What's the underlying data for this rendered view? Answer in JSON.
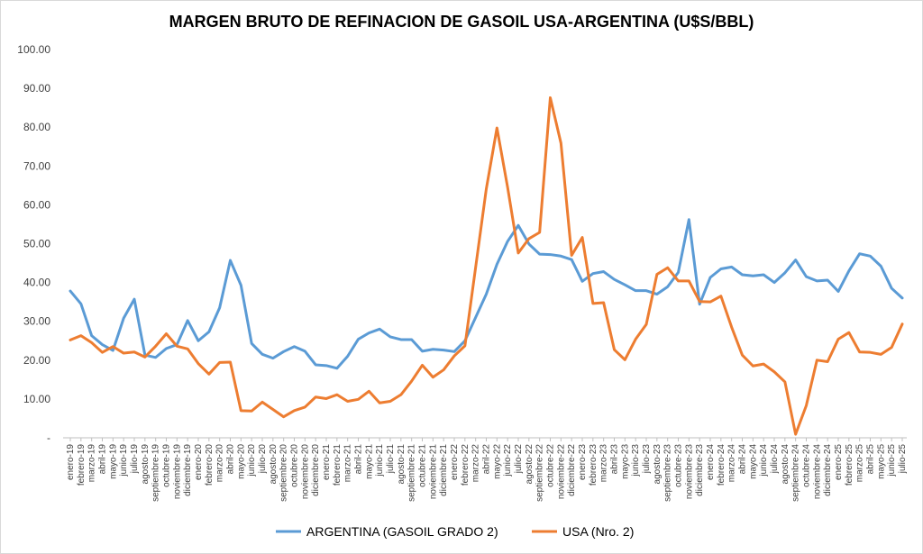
{
  "chart_data": {
    "type": "line",
    "title": "MARGEN BRUTO DE REFINACION DE GASOIL USA-ARGENTINA (U$S/BBL)",
    "xlabel": "",
    "ylabel": "",
    "ylim": [
      0,
      100
    ],
    "yticks": [
      "-",
      "10.00",
      "20.00",
      "30.00",
      "40.00",
      "50.00",
      "60.00",
      "70.00",
      "80.00",
      "90.00",
      "100.00"
    ],
    "grid": false,
    "legend_position": "bottom",
    "categories": [
      "enero-19",
      "febrero-19",
      "marzo-19",
      "abril-19",
      "mayo-19",
      "junio-19",
      "julio-19",
      "agosto-19",
      "septiembre-19",
      "octubre-19",
      "noviembre-19",
      "diciembre-19",
      "enero-20",
      "febrero-20",
      "marzo-20",
      "abril-20",
      "mayo-20",
      "junio-20",
      "julio-20",
      "agosto-20",
      "septiembre-20",
      "octubre-20",
      "noviembre-20",
      "diciembre-20",
      "enero-21",
      "febrero-21",
      "marzo-21",
      "abril-21",
      "mayo-21",
      "junio-21",
      "julio-21",
      "agosto-21",
      "septiembre-21",
      "octubre-21",
      "noviembre-21",
      "diciembre-21",
      "enero-22",
      "febrero-22",
      "marzo-22",
      "abril-22",
      "mayo-22",
      "junio-22",
      "julio-22",
      "agosto-22",
      "septiembre-22",
      "octubre-22",
      "noviembre-22",
      "diciembre-22",
      "enero-23",
      "febrero-23",
      "marzo-23",
      "abril-23",
      "mayo-23",
      "junio-23",
      "julio-23",
      "agosto-23",
      "septiembre-23",
      "octubre-23",
      "noviembre-23",
      "diciembre-23",
      "enero-24",
      "febrero-24",
      "marzo-24",
      "abril-24",
      "mayo-24",
      "junio-24",
      "julio-24",
      "agosto-24",
      "septiembre-24",
      "octubre-24",
      "noviembre-24",
      "diciembre-24",
      "enero-25",
      "febrero-25",
      "marzo-25",
      "abril-25",
      "mayo-25",
      "junio-25",
      "julio-25"
    ],
    "series": [
      {
        "name": "ARGENTINA (GASOIL GRADO 2)",
        "color": "#5b9bd5",
        "values": [
          37.8,
          34.5,
          26.3,
          24.0,
          22.5,
          30.8,
          35.7,
          21.3,
          20.7,
          23.0,
          24.0,
          30.2,
          25.0,
          27.3,
          33.5,
          45.7,
          39.3,
          24.3,
          21.5,
          20.5,
          22.2,
          23.5,
          22.3,
          18.8,
          18.6,
          17.9,
          21.0,
          25.4,
          27.0,
          28.0,
          26.0,
          25.3,
          25.3,
          22.3,
          22.8,
          22.6,
          22.2,
          25.0,
          31.0,
          37.0,
          44.7,
          50.6,
          54.7,
          49.9,
          47.3,
          47.2,
          46.8,
          45.9,
          40.3,
          42.3,
          42.8,
          40.8,
          39.4,
          37.9,
          37.9,
          37.0,
          38.9,
          42.6,
          56.2,
          34.4,
          41.3,
          43.5,
          44.0,
          42.0,
          41.7,
          42.0,
          40.0,
          42.5,
          45.8,
          41.5,
          40.4,
          40.6,
          37.7,
          43.0,
          47.4,
          46.8,
          44.2,
          38.5,
          36.0
        ]
      },
      {
        "name": "USA (Nro. 2)",
        "color": "#ed7d31",
        "values": [
          25.2,
          26.3,
          24.5,
          22.0,
          23.5,
          21.8,
          22.1,
          20.8,
          23.6,
          26.8,
          23.6,
          22.9,
          19.1,
          16.4,
          19.4,
          19.5,
          7.0,
          6.9,
          9.2,
          7.3,
          5.4,
          7.0,
          7.9,
          10.5,
          10.1,
          11.1,
          9.4,
          9.9,
          12.0,
          9.0,
          9.4,
          11.1,
          14.6,
          18.7,
          15.6,
          17.5,
          21.1,
          23.7,
          43.9,
          64.1,
          79.8,
          64.5,
          47.6,
          51.3,
          52.9,
          87.6,
          75.9,
          47.0,
          51.6,
          34.6,
          34.8,
          22.7,
          20.1,
          25.4,
          29.2,
          42.1,
          43.8,
          40.4,
          40.4,
          35.1,
          35.0,
          36.5,
          28.5,
          21.3,
          18.5,
          19.0,
          17.0,
          14.4,
          0.9,
          8.3,
          20.0,
          19.6,
          25.4,
          27.1,
          22.1,
          22.0,
          21.5,
          23.3,
          29.3
        ]
      }
    ]
  }
}
